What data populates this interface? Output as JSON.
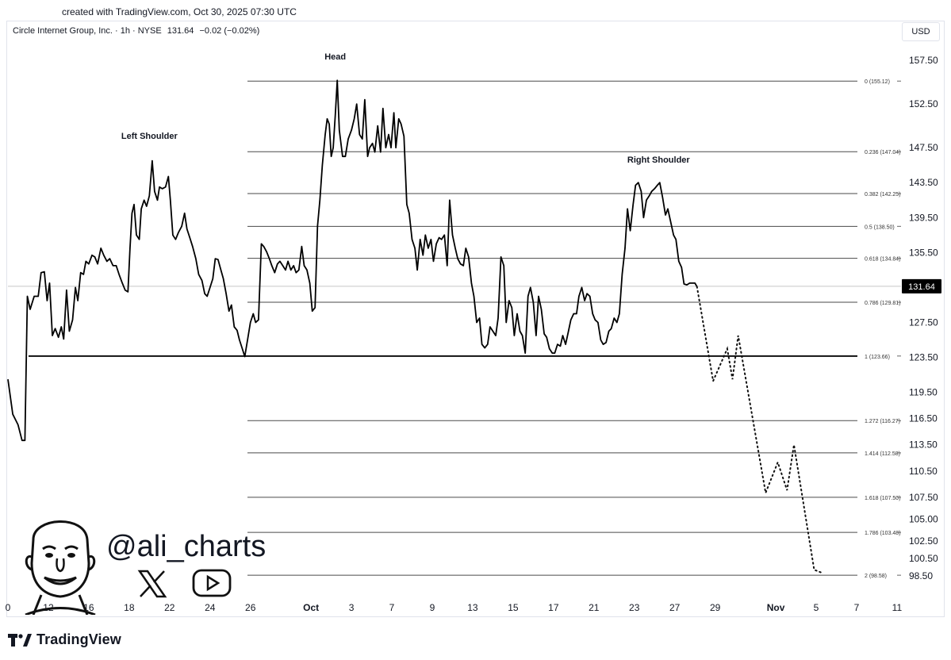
{
  "watermark": {
    "created": "created with TradingView.com, Oct 30, 2025 07:30 UTC"
  },
  "header": {
    "symbol": "Circle Internet Group, Inc. · 1h · NYSE",
    "price": "131.64",
    "change": "−0.02 (−0.02%)",
    "currency": "USD"
  },
  "branding": {
    "tradingview": "TradingView",
    "handle": "@ali_charts"
  },
  "icons": {
    "logo": "tradingview-logo-icon",
    "x": "x-icon",
    "youtube": "youtube-icon",
    "avatar": "avatar-icon"
  },
  "colors": {
    "line": "#000000",
    "level": "#4a4a4a",
    "price_tag_bg": "#000000",
    "price_tag_text": "#ffffff"
  },
  "chart_data": {
    "type": "line",
    "title": "",
    "ylim": [
      96.5,
      160
    ],
    "y_ticks": [
      "157.50",
      "152.50",
      "147.50",
      "143.50",
      "139.50",
      "135.50",
      "127.50",
      "123.50",
      "119.50",
      "116.50",
      "113.50",
      "110.50",
      "107.50",
      "105.00",
      "102.50",
      "100.50",
      "98.50"
    ],
    "x_ticks": [
      {
        "label": "0",
        "x": 0
      },
      {
        "label": "12",
        "x": 1
      },
      {
        "label": "16",
        "x": 2
      },
      {
        "label": "18",
        "x": 3
      },
      {
        "label": "22",
        "x": 4
      },
      {
        "label": "24",
        "x": 5
      },
      {
        "label": "26",
        "x": 6
      },
      {
        "label": "Oct",
        "x": 7.5,
        "bold": true
      },
      {
        "label": "3",
        "x": 8.5
      },
      {
        "label": "7",
        "x": 9.5
      },
      {
        "label": "9",
        "x": 10.5
      },
      {
        "label": "13",
        "x": 11.5
      },
      {
        "label": "15",
        "x": 12.5
      },
      {
        "label": "17",
        "x": 13.5
      },
      {
        "label": "21",
        "x": 14.5
      },
      {
        "label": "23",
        "x": 15.5
      },
      {
        "label": "27",
        "x": 16.5
      },
      {
        "label": "29",
        "x": 17.5
      },
      {
        "label": "Nov",
        "x": 19,
        "bold": true
      },
      {
        "label": "5",
        "x": 20
      },
      {
        "label": "7",
        "x": 21
      },
      {
        "label": "11",
        "x": 22
      }
    ],
    "x_range": [
      0,
      22.1
    ],
    "current_price": 131.64,
    "price_series": [
      [
        0,
        121.0
      ],
      [
        0.12,
        117.0
      ],
      [
        0.25,
        115.8
      ],
      [
        0.35,
        114.0
      ],
      [
        0.42,
        114.0
      ],
      [
        0.48,
        130.5
      ],
      [
        0.55,
        129.0
      ],
      [
        0.65,
        130.5
      ],
      [
        0.75,
        130.5
      ],
      [
        0.82,
        133.2
      ],
      [
        0.9,
        133.3
      ],
      [
        0.97,
        130.0
      ],
      [
        1.03,
        132.0
      ],
      [
        1.1,
        126.0
      ],
      [
        1.17,
        126.8
      ],
      [
        1.25,
        125.8
      ],
      [
        1.32,
        127.0
      ],
      [
        1.38,
        125.6
      ],
      [
        1.45,
        131.2
      ],
      [
        1.52,
        126.5
      ],
      [
        1.6,
        127.8
      ],
      [
        1.67,
        131.5
      ],
      [
        1.73,
        130.0
      ],
      [
        1.8,
        133.2
      ],
      [
        1.87,
        133.0
      ],
      [
        1.93,
        134.5
      ],
      [
        2.0,
        134.2
      ],
      [
        2.08,
        135.2
      ],
      [
        2.15,
        135.0
      ],
      [
        2.22,
        134.2
      ],
      [
        2.3,
        136.0
      ],
      [
        2.37,
        135.2
      ],
      [
        2.45,
        134.5
      ],
      [
        2.52,
        134.8
      ],
      [
        2.6,
        134.0
      ],
      [
        2.68,
        134.0
      ],
      [
        2.75,
        133.0
      ],
      [
        2.83,
        132.0
      ],
      [
        2.9,
        131.2
      ],
      [
        2.97,
        131.0
      ],
      [
        3.02,
        136.0
      ],
      [
        3.07,
        140.0
      ],
      [
        3.12,
        141.0
      ],
      [
        3.18,
        137.5
      ],
      [
        3.25,
        137.0
      ],
      [
        3.3,
        140.5
      ],
      [
        3.37,
        141.5
      ],
      [
        3.43,
        140.8
      ],
      [
        3.5,
        142.0
      ],
      [
        3.57,
        146.0
      ],
      [
        3.63,
        142.5
      ],
      [
        3.7,
        141.5
      ],
      [
        3.75,
        143.0
      ],
      [
        3.82,
        142.8
      ],
      [
        3.9,
        143.0
      ],
      [
        3.97,
        144.2
      ],
      [
        4.02,
        141.5
      ],
      [
        4.08,
        137.5
      ],
      [
        4.15,
        137.0
      ],
      [
        4.22,
        137.8
      ],
      [
        4.3,
        138.5
      ],
      [
        4.37,
        140.0
      ],
      [
        4.43,
        138.2
      ],
      [
        4.5,
        137.2
      ],
      [
        4.57,
        136.2
      ],
      [
        4.65,
        134.8
      ],
      [
        4.72,
        133.0
      ],
      [
        4.8,
        132.3
      ],
      [
        4.87,
        130.8
      ],
      [
        4.93,
        130.5
      ],
      [
        5.0,
        131.5
      ],
      [
        5.07,
        132.5
      ],
      [
        5.13,
        134.8
      ],
      [
        5.2,
        134.7
      ],
      [
        5.27,
        133.5
      ],
      [
        5.33,
        132.5
      ],
      [
        5.4,
        130.8
      ],
      [
        5.47,
        128.8
      ],
      [
        5.53,
        129.5
      ],
      [
        5.6,
        127.0
      ],
      [
        5.67,
        126.6
      ],
      [
        5.73,
        125.5
      ],
      [
        5.8,
        124.5
      ],
      [
        5.86,
        123.6
      ],
      [
        5.93,
        125.5
      ],
      [
        6.0,
        127.5
      ],
      [
        6.07,
        128.5
      ],
      [
        6.13,
        127.5
      ],
      [
        6.2,
        127.8
      ],
      [
        6.27,
        136.5
      ],
      [
        6.33,
        136.2
      ],
      [
        6.4,
        135.6
      ],
      [
        6.47,
        134.8
      ],
      [
        6.53,
        134.0
      ],
      [
        6.6,
        133.2
      ],
      [
        6.67,
        134.2
      ],
      [
        6.73,
        134.5
      ],
      [
        6.8,
        134.0
      ],
      [
        6.87,
        133.5
      ],
      [
        6.93,
        134.5
      ],
      [
        7.0,
        133.5
      ],
      [
        7.07,
        134.0
      ],
      [
        7.13,
        133.2
      ],
      [
        7.2,
        133.5
      ],
      [
        7.27,
        136.2
      ],
      [
        7.33,
        134.0
      ],
      [
        7.4,
        133.5
      ],
      [
        7.47,
        132.0
      ],
      [
        7.53,
        128.8
      ],
      [
        7.6,
        129.2
      ],
      [
        7.66,
        138.5
      ],
      [
        7.72,
        141.5
      ],
      [
        7.78,
        145.5
      ],
      [
        7.85,
        149.0
      ],
      [
        7.9,
        150.8
      ],
      [
        7.95,
        150.2
      ],
      [
        8.0,
        146.5
      ],
      [
        8.05,
        147.5
      ],
      [
        8.1,
        151.2
      ],
      [
        8.15,
        155.2
      ],
      [
        8.2,
        149.5
      ],
      [
        8.28,
        146.5
      ],
      [
        8.35,
        146.5
      ],
      [
        8.42,
        148.5
      ],
      [
        8.5,
        149.5
      ],
      [
        8.57,
        150.8
      ],
      [
        8.63,
        152.5
      ],
      [
        8.7,
        149.0
      ],
      [
        8.77,
        148.5
      ],
      [
        8.83,
        153.0
      ],
      [
        8.9,
        146.5
      ],
      [
        8.95,
        147.5
      ],
      [
        9.02,
        148.0
      ],
      [
        9.08,
        147.0
      ],
      [
        9.15,
        150.0
      ],
      [
        9.22,
        147.0
      ],
      [
        9.28,
        152.0
      ],
      [
        9.35,
        147.5
      ],
      [
        9.42,
        149.0
      ],
      [
        9.48,
        147.5
      ],
      [
        9.55,
        151.5
      ],
      [
        9.6,
        147.5
      ],
      [
        9.67,
        150.8
      ],
      [
        9.73,
        150.2
      ],
      [
        9.8,
        148.8
      ],
      [
        9.87,
        141.0
      ],
      [
        9.93,
        140.0
      ],
      [
        10.0,
        137.0
      ],
      [
        10.07,
        136.0
      ],
      [
        10.13,
        133.5
      ],
      [
        10.2,
        137.0
      ],
      [
        10.27,
        135.2
      ],
      [
        10.33,
        137.5
      ],
      [
        10.4,
        136.0
      ],
      [
        10.47,
        137.0
      ],
      [
        10.53,
        134.5
      ],
      [
        10.6,
        136.5
      ],
      [
        10.67,
        137.2
      ],
      [
        10.73,
        137.0
      ],
      [
        10.8,
        137.5
      ],
      [
        10.87,
        134.0
      ],
      [
        10.93,
        141.5
      ],
      [
        11.0,
        137.5
      ],
      [
        11.07,
        136.0
      ],
      [
        11.13,
        134.8
      ],
      [
        11.2,
        134.2
      ],
      [
        11.27,
        134.0
      ],
      [
        11.33,
        136.0
      ],
      [
        11.4,
        135.0
      ],
      [
        11.47,
        132.0
      ],
      [
        11.53,
        130.5
      ],
      [
        11.6,
        127.5
      ],
      [
        11.67,
        128.0
      ],
      [
        11.73,
        125.0
      ],
      [
        11.8,
        124.6
      ],
      [
        11.87,
        125.0
      ],
      [
        11.93,
        127.0
      ],
      [
        12.0,
        126.5
      ],
      [
        12.07,
        126.0
      ],
      [
        12.13,
        128.0
      ],
      [
        12.2,
        135.0
      ],
      [
        12.27,
        134.0
      ],
      [
        12.33,
        127.5
      ],
      [
        12.4,
        130.0
      ],
      [
        12.47,
        129.2
      ],
      [
        12.53,
        126.0
      ],
      [
        12.6,
        128.5
      ],
      [
        12.67,
        126.5
      ],
      [
        12.73,
        126.0
      ],
      [
        12.8,
        124.0
      ],
      [
        12.87,
        130.5
      ],
      [
        12.93,
        131.5
      ],
      [
        13.0,
        129.8
      ],
      [
        13.07,
        126.0
      ],
      [
        13.13,
        130.5
      ],
      [
        13.2,
        129.0
      ],
      [
        13.27,
        126.2
      ],
      [
        13.33,
        125.8
      ],
      [
        13.4,
        124.5
      ],
      [
        13.47,
        124.0
      ],
      [
        13.53,
        124.0
      ],
      [
        13.6,
        125.0
      ],
      [
        13.67,
        124.8
      ],
      [
        13.73,
        126.0
      ],
      [
        13.8,
        125.0
      ],
      [
        13.87,
        126.5
      ],
      [
        13.93,
        127.8
      ],
      [
        14.0,
        128.5
      ],
      [
        14.07,
        128.5
      ],
      [
        14.13,
        130.5
      ],
      [
        14.2,
        131.5
      ],
      [
        14.27,
        130.0
      ],
      [
        14.33,
        130.8
      ],
      [
        14.4,
        130.5
      ],
      [
        14.47,
        128.5
      ],
      [
        14.53,
        127.8
      ],
      [
        14.6,
        127.5
      ],
      [
        14.67,
        125.5
      ],
      [
        14.73,
        125.0
      ],
      [
        14.8,
        125.2
      ],
      [
        14.87,
        126.5
      ],
      [
        14.93,
        126.8
      ],
      [
        15.0,
        128.0
      ],
      [
        15.07,
        127.5
      ],
      [
        15.13,
        128.5
      ],
      [
        15.2,
        133.0
      ],
      [
        15.27,
        136.0
      ],
      [
        15.33,
        140.5
      ],
      [
        15.4,
        138.0
      ],
      [
        15.47,
        141.0
      ],
      [
        15.53,
        143.2
      ],
      [
        15.6,
        143.5
      ],
      [
        15.67,
        142.5
      ],
      [
        15.73,
        139.5
      ],
      [
        15.8,
        141.5
      ],
      [
        15.87,
        142.0
      ],
      [
        15.93,
        142.5
      ],
      [
        16.0,
        142.8
      ],
      [
        16.07,
        143.2
      ],
      [
        16.13,
        143.5
      ],
      [
        16.2,
        141.8
      ],
      [
        16.27,
        139.8
      ],
      [
        16.33,
        140.5
      ],
      [
        16.4,
        139.0
      ],
      [
        16.47,
        137.5
      ],
      [
        16.53,
        137.0
      ],
      [
        16.6,
        134.5
      ],
      [
        16.67,
        133.8
      ],
      [
        16.73,
        131.9
      ],
      [
        16.8,
        131.8
      ],
      [
        16.87,
        132.0
      ],
      [
        16.93,
        132.0
      ],
      [
        17.0,
        132.0
      ],
      [
        17.05,
        131.6
      ]
    ],
    "projected_path": [
      [
        17.05,
        131.6
      ],
      [
        17.45,
        120.8
      ],
      [
        17.8,
        124.5
      ],
      [
        17.93,
        121.0
      ],
      [
        18.07,
        126.0
      ],
      [
        18.75,
        108.0
      ],
      [
        19.05,
        111.5
      ],
      [
        19.28,
        108.3
      ],
      [
        19.45,
        113.5
      ],
      [
        19.95,
        99.2
      ],
      [
        20.12,
        98.9
      ]
    ],
    "fib_levels": [
      {
        "label": "0 (155.12)",
        "value": 155.12
      },
      {
        "label": "0.236 (147.04)",
        "value": 147.04
      },
      {
        "label": "0.382 (142.25)",
        "value": 142.25
      },
      {
        "label": "0.5 (138.50)",
        "value": 138.5
      },
      {
        "label": "0.618 (134.84)",
        "value": 134.84
      },
      {
        "label": "0.786 (129.81)",
        "value": 129.81
      },
      {
        "label": "1 (123.66)",
        "value": 123.66
      },
      {
        "label": "1.272 (116.27)",
        "value": 116.27
      },
      {
        "label": "1.414 (112.58)",
        "value": 112.58
      },
      {
        "label": "1.618 (107.50)",
        "value": 107.5
      },
      {
        "label": "1.786 (103.48)",
        "value": 103.48
      },
      {
        "label": "2 (98.58)",
        "value": 98.58
      }
    ],
    "neckline": 123.66,
    "annotations": [
      {
        "text": "Left Shoulder",
        "x": 3.5,
        "y": 148.5
      },
      {
        "text": "Head",
        "x": 8.1,
        "y": 157.6
      },
      {
        "text": "Right Shoulder",
        "x": 16.1,
        "y": 145.8
      }
    ]
  }
}
